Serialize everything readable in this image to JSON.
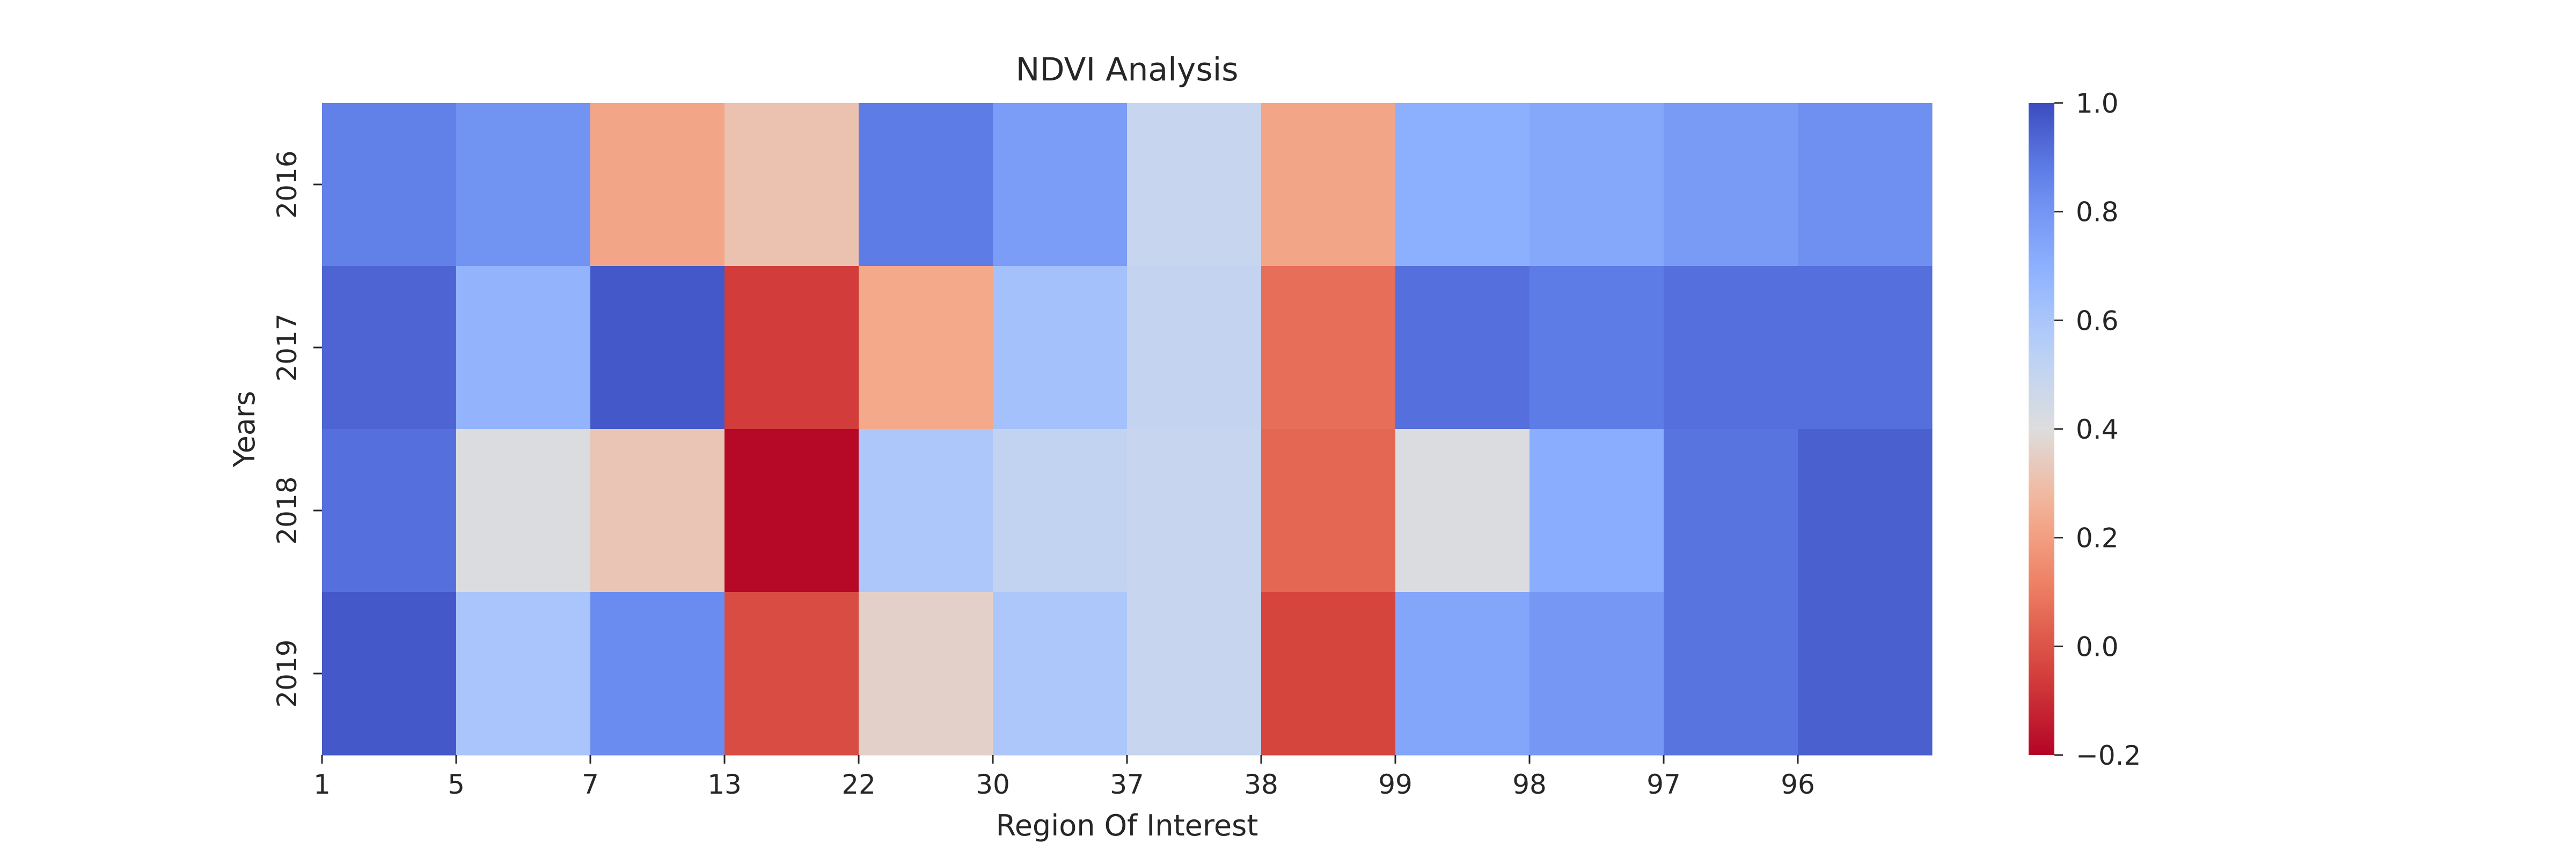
{
  "chart_data": {
    "type": "heatmap",
    "title": "NDVI Analysis",
    "xlabel": "Region Of Interest",
    "ylabel": "Years",
    "x_tick_labels": [
      "1",
      "5",
      "7",
      "13",
      "22",
      "30",
      "37",
      "38",
      "99",
      "98",
      "97",
      "96"
    ],
    "y_tick_labels": [
      "2016",
      "2017",
      "2018",
      "2019"
    ],
    "values": [
      [
        0.87,
        0.81,
        0.22,
        0.31,
        0.88,
        0.77,
        0.49,
        0.22,
        0.7,
        0.73,
        0.78,
        0.82
      ],
      [
        0.94,
        0.68,
        0.97,
        -0.06,
        0.23,
        0.62,
        0.5,
        0.07,
        0.91,
        0.88,
        0.91,
        0.91
      ],
      [
        0.91,
        0.41,
        0.32,
        -0.19,
        0.59,
        0.51,
        0.49,
        0.05,
        0.41,
        0.71,
        0.9,
        0.95
      ],
      [
        0.97,
        0.6,
        0.84,
        -0.02,
        0.36,
        0.59,
        0.49,
        -0.04,
        0.74,
        0.79,
        0.9,
        0.95
      ]
    ],
    "colorbar": {
      "range": [
        -0.2,
        1.0
      ],
      "tick_labels": [
        "1.0",
        "0.8",
        "0.6",
        "0.4",
        "0.2",
        "0.0",
        "−0.2"
      ],
      "colormap": "coolwarm"
    }
  }
}
